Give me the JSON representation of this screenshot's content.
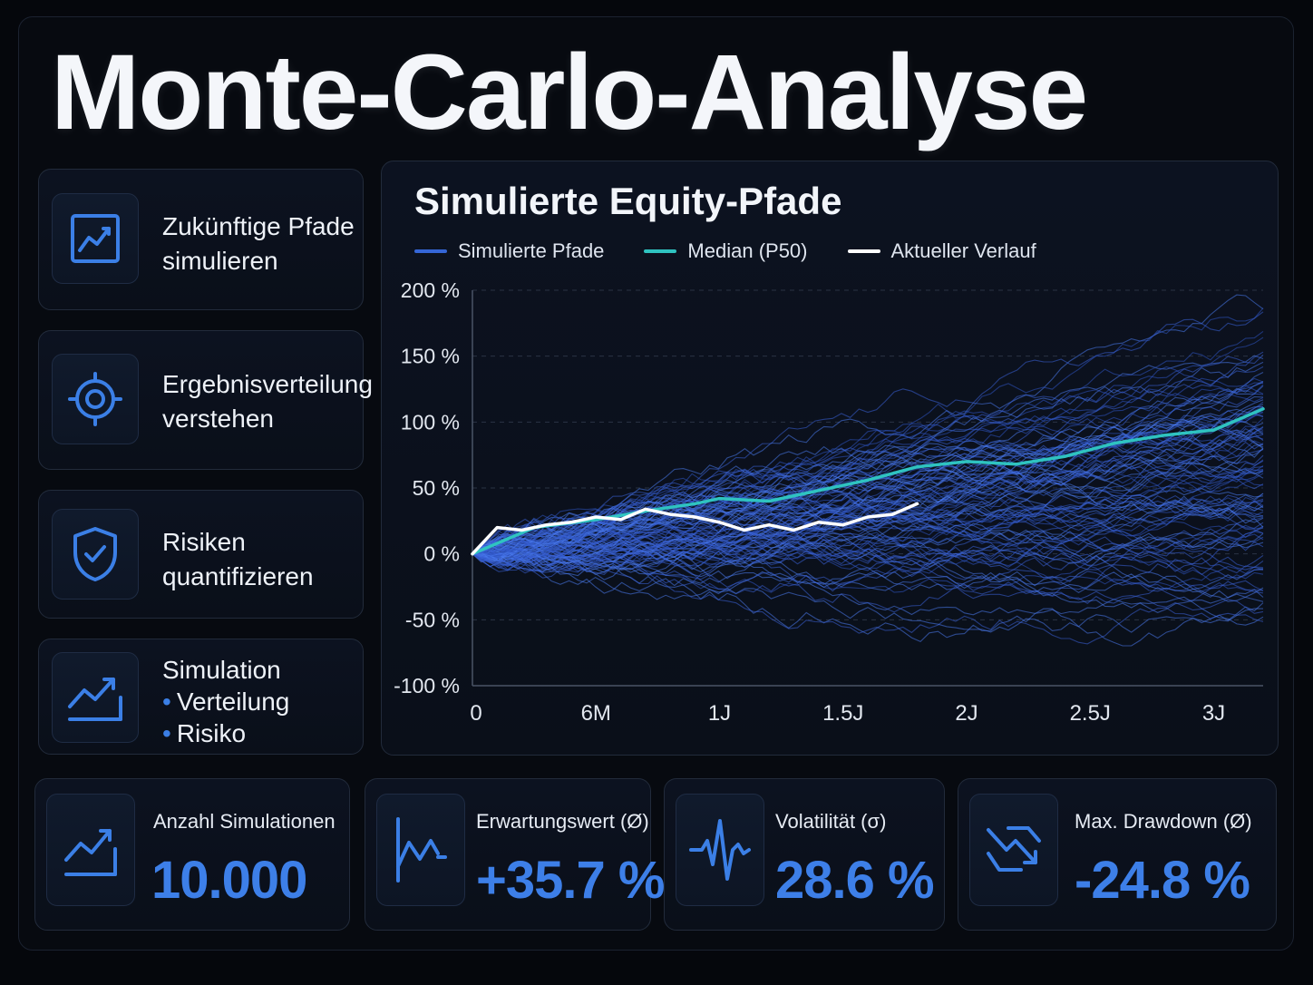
{
  "header": {
    "title": "Monte-Carlo-Analyse"
  },
  "features": [
    {
      "icon": "line-chart-icon",
      "lines": [
        "Zukünftige Pfade",
        "simulieren"
      ]
    },
    {
      "icon": "target-icon",
      "lines": [
        "Ergebnisverteilung",
        "verstehen"
      ]
    },
    {
      "icon": "shield-check-icon",
      "lines": [
        "Risiken",
        "quantifizieren"
      ]
    },
    {
      "icon": "trend-up-icon",
      "lines": [
        "Simulation",
        "Verteilung",
        "Risiko"
      ]
    }
  ],
  "chart": {
    "title": "Simulierte Equity-Pfade",
    "legend": [
      {
        "label": "Simulierte Pfade",
        "color": "#3566d6"
      },
      {
        "label": "Median (P50)",
        "color": "#2fc3c0"
      },
      {
        "label": "Aktueller Verlauf",
        "color": "#ffffff"
      }
    ]
  },
  "chart_data": {
    "type": "line",
    "x_ticks": [
      "0",
      "6M",
      "1J",
      "1.5J",
      "2J",
      "2.5J",
      "3J"
    ],
    "y_ticks": [
      "200 %",
      "150 %",
      "100 %",
      "50 %",
      "0 %",
      "-50 %",
      "-100 %"
    ],
    "xlim_years": [
      0,
      3.2
    ],
    "ylim_pct": [
      -100,
      200
    ],
    "grid": "horizontal-dashed",
    "legend_placement": "top-left",
    "series": [
      {
        "name": "Median (P50)",
        "color": "#2fc3c0",
        "x_years": [
          0,
          0.25,
          0.5,
          0.75,
          0.9,
          1.0,
          1.2,
          1.4,
          1.6,
          1.8,
          2.0,
          2.2,
          2.4,
          2.6,
          2.8,
          3.0,
          3.2
        ],
        "y_pct": [
          0,
          20,
          26,
          34,
          38,
          42,
          40,
          48,
          56,
          66,
          70,
          68,
          74,
          84,
          90,
          94,
          110
        ]
      },
      {
        "name": "Aktueller Verlauf",
        "color": "#ffffff",
        "x_years": [
          0,
          0.1,
          0.2,
          0.3,
          0.4,
          0.5,
          0.6,
          0.7,
          0.8,
          0.9,
          1.0,
          1.1,
          1.2,
          1.3,
          1.4,
          1.5,
          1.6,
          1.7,
          1.8
        ],
        "y_pct": [
          0,
          20,
          18,
          22,
          24,
          28,
          26,
          34,
          30,
          28,
          24,
          18,
          22,
          18,
          24,
          22,
          28,
          30,
          38
        ]
      }
    ],
    "simulated_paths": {
      "name": "Simulierte Pfade",
      "color": "#3566d6"
    }
  },
  "stats": [
    {
      "icon": "chart-up-icon",
      "label": "Anzahl Simulationen",
      "value": "10.000"
    },
    {
      "icon": "zigzag-chart-icon",
      "label": "Erwartungswert (Ø)",
      "value": "+35.7 %"
    },
    {
      "icon": "pulse-icon",
      "label": "Volatilität (σ)",
      "value": "28.6 %"
    },
    {
      "icon": "drawdown-icon",
      "label": "Max. Drawdown (Ø)",
      "value": "-24.8 %"
    }
  ]
}
